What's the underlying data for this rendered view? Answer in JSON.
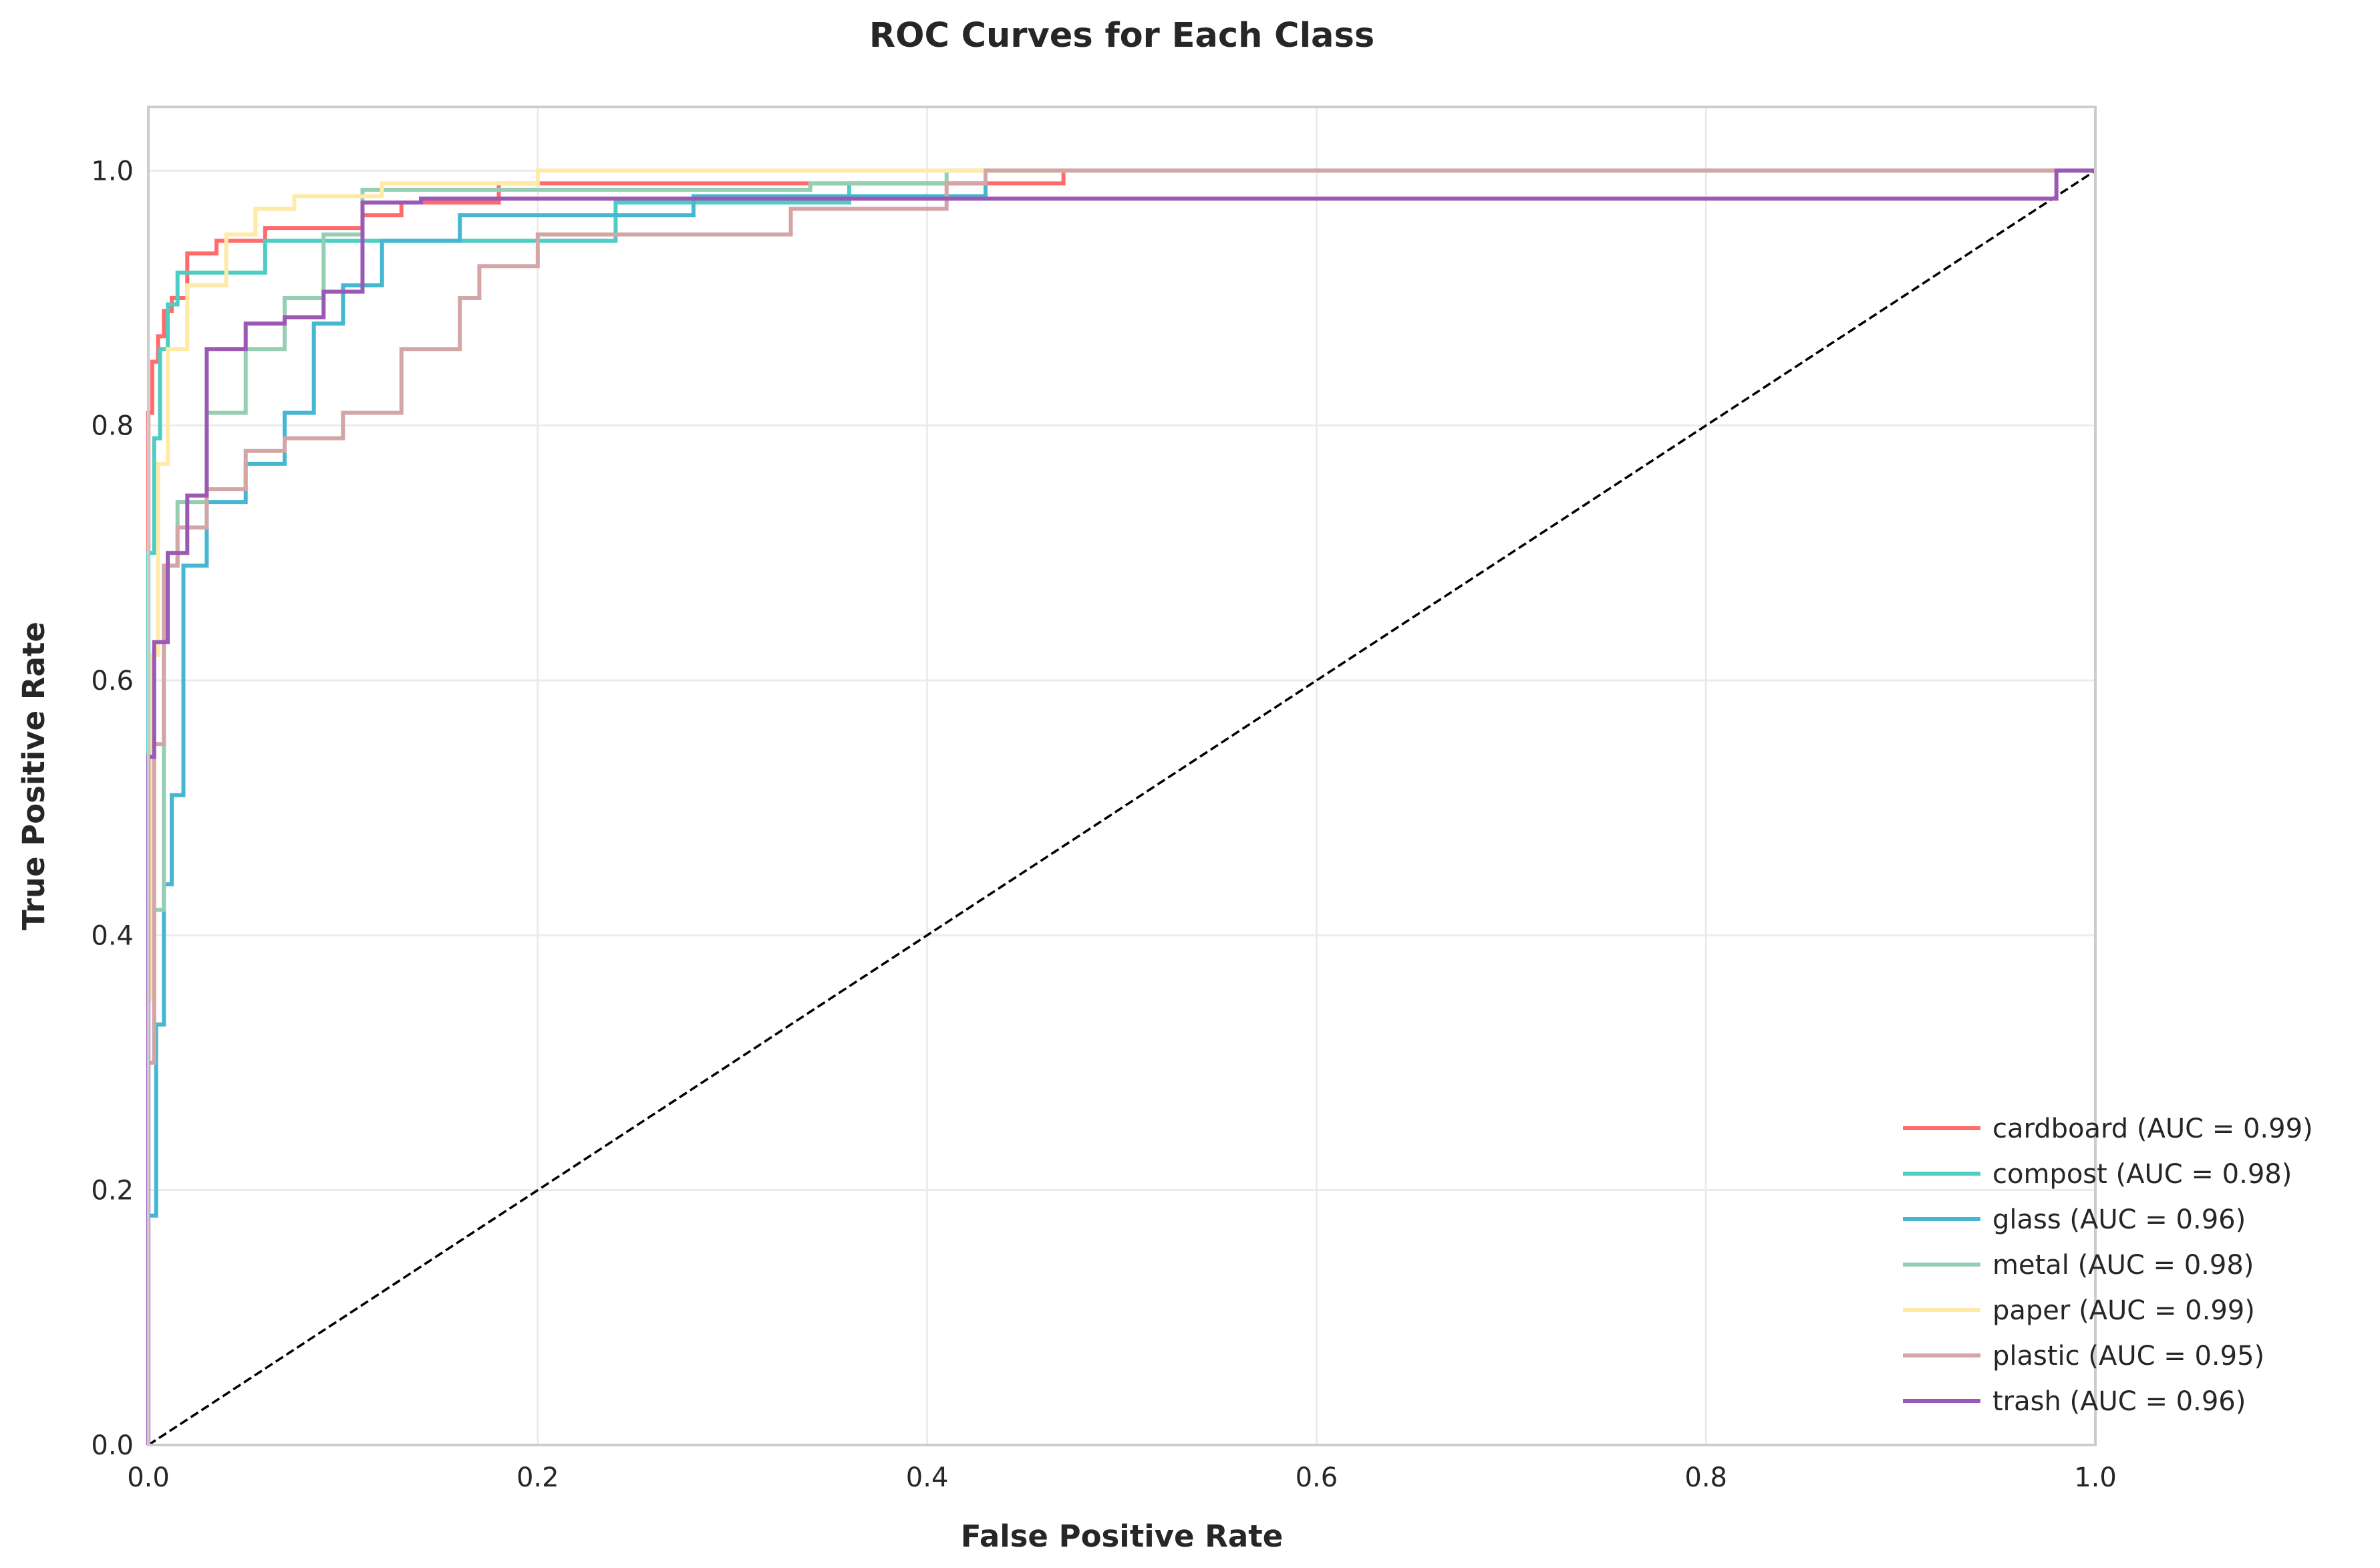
{
  "chart_data": {
    "type": "line",
    "title": "ROC Curves for Each Class",
    "xlabel": "False Positive Rate",
    "ylabel": "True Positive Rate",
    "xlim": [
      0,
      1
    ],
    "ylim": [
      0,
      1.05
    ],
    "xticks": [
      "0.0",
      "0.2",
      "0.4",
      "0.6",
      "0.8",
      "1.0"
    ],
    "yticks": [
      "0.0",
      "0.2",
      "0.4",
      "0.6",
      "0.8",
      "1.0"
    ],
    "grid": true,
    "legend_position": "lower-right",
    "diagonal": {
      "x": [
        0,
        1
      ],
      "y": [
        0,
        1
      ],
      "style": "dashed",
      "color": "#000000"
    },
    "series": [
      {
        "name": "cardboard (AUC = 0.99)",
        "color": "#ff6b6b",
        "x": [
          0,
          0,
          0.002,
          0.002,
          0.005,
          0.005,
          0.008,
          0.008,
          0.012,
          0.012,
          0.02,
          0.02,
          0.035,
          0.035,
          0.06,
          0.06,
          0.11,
          0.11,
          0.13,
          0.13,
          0.18,
          0.18,
          0.47,
          0.47,
          1.0
        ],
        "y": [
          0,
          0.81,
          0.81,
          0.85,
          0.85,
          0.87,
          0.87,
          0.89,
          0.89,
          0.9,
          0.9,
          0.935,
          0.935,
          0.945,
          0.945,
          0.955,
          0.955,
          0.965,
          0.965,
          0.975,
          0.975,
          0.99,
          0.99,
          1.0,
          1.0
        ]
      },
      {
        "name": "compost (AUC = 0.98)",
        "color": "#4ecdc4",
        "x": [
          0,
          0,
          0.003,
          0.003,
          0.006,
          0.006,
          0.01,
          0.01,
          0.015,
          0.015,
          0.06,
          0.06,
          0.24,
          0.24,
          0.36,
          0.36,
          0.43,
          0.43,
          1.0
        ],
        "y": [
          0,
          0.7,
          0.7,
          0.79,
          0.79,
          0.86,
          0.86,
          0.895,
          0.895,
          0.92,
          0.92,
          0.945,
          0.945,
          0.975,
          0.975,
          0.99,
          0.99,
          1.0,
          1.0
        ]
      },
      {
        "name": "glass (AUC = 0.96)",
        "color": "#45b7d1",
        "x": [
          0,
          0,
          0.004,
          0.004,
          0.008,
          0.008,
          0.012,
          0.012,
          0.018,
          0.018,
          0.03,
          0.03,
          0.05,
          0.05,
          0.07,
          0.07,
          0.085,
          0.085,
          0.1,
          0.1,
          0.12,
          0.12,
          0.16,
          0.16,
          0.28,
          0.28,
          0.43,
          0.43,
          1.0
        ],
        "y": [
          0,
          0.18,
          0.18,
          0.33,
          0.33,
          0.44,
          0.44,
          0.51,
          0.51,
          0.69,
          0.69,
          0.74,
          0.74,
          0.77,
          0.77,
          0.81,
          0.81,
          0.88,
          0.88,
          0.91,
          0.91,
          0.945,
          0.945,
          0.965,
          0.965,
          0.98,
          0.98,
          1.0,
          1.0
        ]
      },
      {
        "name": "metal (AUC = 0.98)",
        "color": "#96ceb4",
        "x": [
          0,
          0,
          0.003,
          0.003,
          0.008,
          0.008,
          0.015,
          0.015,
          0.03,
          0.03,
          0.05,
          0.05,
          0.07,
          0.07,
          0.09,
          0.09,
          0.11,
          0.11,
          0.34,
          0.34,
          0.41,
          0.41,
          1.0
        ],
        "y": [
          0,
          0.3,
          0.3,
          0.42,
          0.42,
          0.69,
          0.69,
          0.74,
          0.74,
          0.81,
          0.81,
          0.86,
          0.86,
          0.9,
          0.9,
          0.95,
          0.95,
          0.985,
          0.985,
          0.99,
          0.99,
          1.0,
          1.0
        ]
      },
      {
        "name": "paper (AUC = 0.99)",
        "color": "#ffeaa7",
        "x": [
          0,
          0,
          0.002,
          0.002,
          0.005,
          0.005,
          0.01,
          0.01,
          0.02,
          0.02,
          0.04,
          0.04,
          0.055,
          0.055,
          0.075,
          0.075,
          0.12,
          0.12,
          0.2,
          0.2,
          1.0
        ],
        "y": [
          0,
          0.35,
          0.35,
          0.62,
          0.62,
          0.77,
          0.77,
          0.86,
          0.86,
          0.91,
          0.91,
          0.95,
          0.95,
          0.97,
          0.97,
          0.98,
          0.98,
          0.99,
          0.99,
          1.0,
          1.0
        ]
      },
      {
        "name": "plastic (AUC = 0.95)",
        "color": "#d4a5a5",
        "x": [
          0,
          0,
          0.003,
          0.003,
          0.008,
          0.008,
          0.015,
          0.015,
          0.03,
          0.03,
          0.05,
          0.05,
          0.07,
          0.07,
          0.1,
          0.1,
          0.13,
          0.13,
          0.16,
          0.16,
          0.17,
          0.17,
          0.2,
          0.2,
          0.33,
          0.33,
          0.41,
          0.41,
          0.43,
          0.43,
          1.0
        ],
        "y": [
          0,
          0.3,
          0.3,
          0.55,
          0.55,
          0.69,
          0.69,
          0.72,
          0.72,
          0.75,
          0.75,
          0.78,
          0.78,
          0.79,
          0.79,
          0.81,
          0.81,
          0.86,
          0.86,
          0.9,
          0.9,
          0.925,
          0.925,
          0.95,
          0.95,
          0.97,
          0.97,
          0.99,
          0.99,
          1.0,
          1.0
        ]
      },
      {
        "name": "trash (AUC = 0.96)",
        "color": "#9b59b6",
        "x": [
          0,
          0,
          0.003,
          0.003,
          0.01,
          0.01,
          0.02,
          0.02,
          0.03,
          0.03,
          0.05,
          0.05,
          0.07,
          0.07,
          0.09,
          0.09,
          0.11,
          0.11,
          0.14,
          0.14,
          0.98,
          0.98,
          1.0
        ],
        "y": [
          0,
          0.54,
          0.54,
          0.63,
          0.63,
          0.7,
          0.7,
          0.745,
          0.745,
          0.86,
          0.86,
          0.88,
          0.88,
          0.885,
          0.885,
          0.905,
          0.905,
          0.975,
          0.975,
          0.978,
          0.978,
          1.0,
          1.0
        ]
      }
    ]
  }
}
